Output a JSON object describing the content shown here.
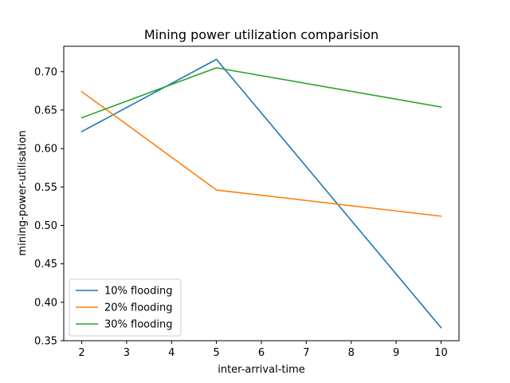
{
  "chart_data": {
    "type": "line",
    "title": "Mining power utilization comparision",
    "xlabel": "inter-arrival-time",
    "ylabel": "mining-power-utilisation",
    "x": [
      2,
      5,
      10
    ],
    "xlim": [
      1.6,
      10.4
    ],
    "ylim": [
      0.35,
      0.733
    ],
    "xticks": [
      2,
      3,
      4,
      5,
      6,
      7,
      8,
      9,
      10
    ],
    "yticks": [
      0.35,
      0.4,
      0.45,
      0.5,
      0.55,
      0.6,
      0.65,
      0.7
    ],
    "ytick_labels": [
      "0.35",
      "0.40",
      "0.45",
      "0.50",
      "0.55",
      "0.60",
      "0.65",
      "0.70"
    ],
    "grid": false,
    "legend_position": "lower-left",
    "series": [
      {
        "name": "10% flooding",
        "color": "#1f77b4",
        "values": [
          0.622,
          0.716,
          0.367
        ]
      },
      {
        "name": "20% flooding",
        "color": "#ff7f0e",
        "values": [
          0.674,
          0.546,
          0.512
        ]
      },
      {
        "name": "30% flooding",
        "color": "#2ca02c",
        "values": [
          0.64,
          0.705,
          0.654
        ]
      }
    ]
  }
}
